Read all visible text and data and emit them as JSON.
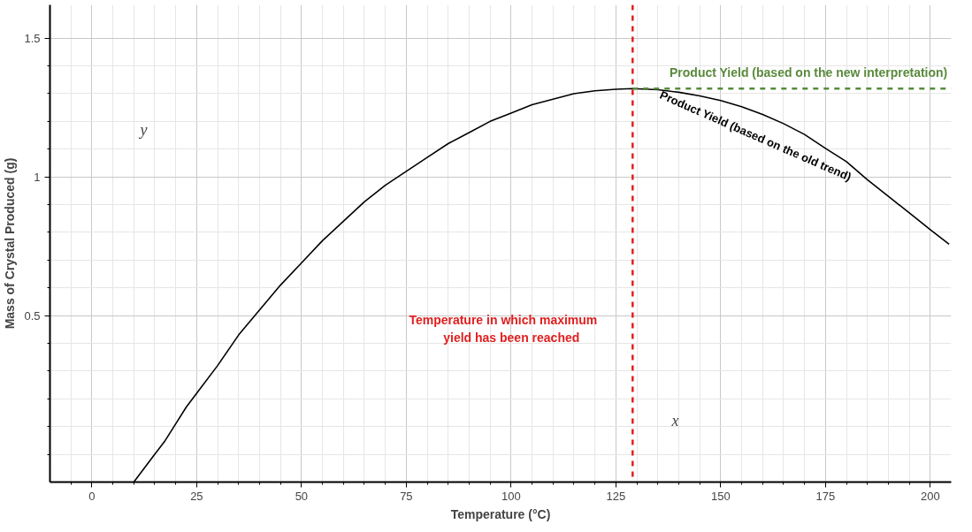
{
  "chart_data": {
    "type": "line",
    "xlabel": "Temperature (°C)",
    "ylabel": "Mass of Crystal Produced (g)",
    "xlim": [
      -10,
      205
    ],
    "ylim": [
      -0.1,
      1.62
    ],
    "xticks": [
      {
        "value": -5,
        "label": null
      },
      0,
      {
        "value": 5,
        "label": null
      },
      {
        "value": 10,
        "label": null
      },
      {
        "value": 15,
        "label": null
      },
      {
        "value": 20,
        "label": null
      },
      25,
      {
        "value": 30,
        "label": null
      },
      {
        "value": 35,
        "label": null
      },
      {
        "value": 40,
        "label": null
      },
      {
        "value": 45,
        "label": null
      },
      50,
      {
        "value": 55,
        "label": null
      },
      {
        "value": 60,
        "label": null
      },
      {
        "value": 65,
        "label": null
      },
      {
        "value": 70,
        "label": null
      },
      75,
      {
        "value": 80,
        "label": null
      },
      {
        "value": 85,
        "label": null
      },
      {
        "value": 90,
        "label": null
      },
      {
        "value": 95,
        "label": null
      },
      100,
      {
        "value": 105,
        "label": null
      },
      {
        "value": 110,
        "label": null
      },
      {
        "value": 115,
        "label": null
      },
      {
        "value": 120,
        "label": null
      },
      125,
      {
        "value": 130,
        "label": null
      },
      {
        "value": 135,
        "label": null
      },
      {
        "value": 140,
        "label": null
      },
      {
        "value": 145,
        "label": null
      },
      150,
      {
        "value": 155,
        "label": null
      },
      {
        "value": 160,
        "label": null
      },
      {
        "value": 165,
        "label": null
      },
      {
        "value": 170,
        "label": null
      },
      175,
      {
        "value": 180,
        "label": null
      },
      {
        "value": 185,
        "label": null
      },
      {
        "value": 190,
        "label": null
      },
      {
        "value": 195,
        "label": null
      },
      200
    ],
    "yticks": [
      {
        "value": 0,
        "label": null
      },
      {
        "value": 0.1,
        "label": null
      },
      {
        "value": 0.2,
        "label": null
      },
      {
        "value": 0.3,
        "label": null
      },
      {
        "value": 0.4,
        "label": null
      },
      0.5,
      {
        "value": 0.6,
        "label": null
      },
      {
        "value": 0.7,
        "label": null
      },
      {
        "value": 0.8,
        "label": null
      },
      {
        "value": 0.9,
        "label": null
      },
      1,
      {
        "value": 1.1,
        "label": null
      },
      {
        "value": 1.2,
        "label": null
      },
      {
        "value": 1.3,
        "label": null
      },
      {
        "value": 1.4,
        "label": null
      },
      1.5
    ],
    "grid": true,
    "marker": "none",
    "series": [
      {
        "name": "Product Yield (based on the old trend)",
        "color": "#000000",
        "line_style": "solid",
        "x": [
          10,
          12.5,
          15,
          17.5,
          20,
          22.5,
          25,
          30,
          35,
          40,
          45,
          50,
          55,
          60,
          65,
          70,
          75,
          80,
          85,
          90,
          95,
          100,
          105,
          110,
          115,
          120,
          125,
          129,
          135,
          140,
          145,
          150,
          155,
          160,
          165,
          170,
          175,
          180,
          185,
          190,
          195,
          200,
          204.5
        ],
        "values": [
          -0.1,
          -0.05,
          0.0,
          0.05,
          0.11,
          0.17,
          0.22,
          0.32,
          0.43,
          0.52,
          0.61,
          0.69,
          0.77,
          0.84,
          0.91,
          0.97,
          1.02,
          1.07,
          1.12,
          1.16,
          1.2,
          1.23,
          1.26,
          1.28,
          1.3,
          1.31,
          1.316,
          1.318,
          1.314,
          1.305,
          1.292,
          1.275,
          1.253,
          1.225,
          1.192,
          1.153,
          1.103,
          1.055,
          0.99,
          0.93,
          0.87,
          0.81,
          0.757
        ]
      },
      {
        "name": "Product Yield (based on the new interpretation)",
        "color": "#5a8a3c",
        "line_style": "dashed",
        "x": [
          129,
          205
        ],
        "values": [
          1.318,
          1.318
        ]
      }
    ],
    "ref_lines": [
      {
        "axis": "x",
        "value": 129,
        "label": "Temperature in which maximum yield has been reached",
        "color": "#e02020",
        "line_style": "dashed"
      }
    ],
    "annotations": [
      "y",
      "x"
    ]
  }
}
